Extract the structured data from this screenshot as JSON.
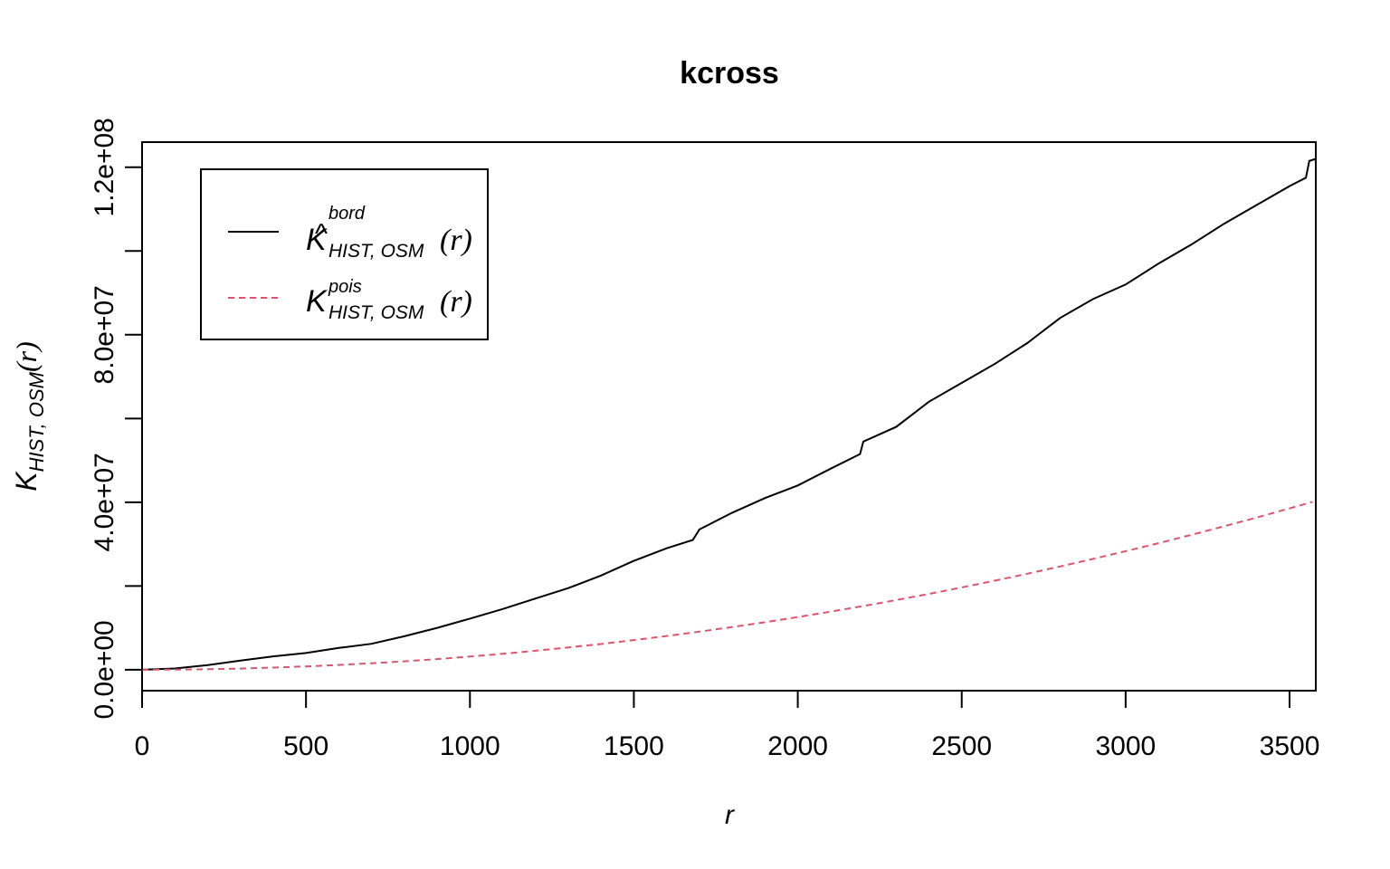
{
  "chart_data": {
    "type": "line",
    "title": "kcross",
    "xlabel": "r",
    "ylabel": {
      "base": "K",
      "subscript": "HIST, OSM",
      "arg": "(r)"
    },
    "xlim": [
      0,
      3580
    ],
    "ylim": [
      -5000000,
      126000000
    ],
    "x_ticks": [
      0,
      500,
      1000,
      1500,
      2000,
      2500,
      3000,
      3500
    ],
    "x_tick_labels": [
      "0",
      "500",
      "1000",
      "1500",
      "2000",
      "2500",
      "3000",
      "3500"
    ],
    "y_ticks": [
      0,
      20000000,
      40000000,
      60000000,
      80000000,
      100000000,
      120000000
    ],
    "y_tick_labels": [
      "0.0e+00",
      "4.0e+07",
      "8.0e+07",
      "1.2e+08"
    ],
    "y_labeled_ticks": [
      0,
      40000000,
      80000000,
      120000000
    ],
    "grid": false,
    "legend_position": "top-left",
    "series": [
      {
        "legend": {
          "base": "K",
          "hat": "^",
          "superscript": "bord",
          "subscript": "HIST, OSM",
          "arg": "(r)"
        },
        "color": "#000000",
        "dash": "solid",
        "x": [
          0,
          100,
          200,
          300,
          400,
          500,
          600,
          700,
          800,
          900,
          1000,
          1100,
          1200,
          1300,
          1400,
          1500,
          1600,
          1680,
          1700,
          1800,
          1900,
          2000,
          2100,
          2190,
          2200,
          2300,
          2400,
          2500,
          2600,
          2700,
          2800,
          2900,
          3000,
          3100,
          3200,
          3300,
          3400,
          3500,
          3550,
          3560,
          3580
        ],
        "y": [
          0,
          300000,
          1100000,
          2200000,
          3200000,
          4000000,
          5200000,
          6200000,
          8000000,
          10000000,
          12200000,
          14500000,
          17000000,
          19500000,
          22500000,
          26000000,
          29000000,
          31000000,
          33500000,
          37500000,
          41000000,
          44000000,
          48000000,
          51500000,
          54500000,
          58000000,
          64000000,
          68500000,
          73000000,
          78000000,
          84000000,
          88500000,
          92000000,
          97000000,
          101500000,
          106500000,
          111000000,
          115500000,
          117500000,
          121500000,
          122000000
        ]
      },
      {
        "legend": {
          "base": "K",
          "superscript": "pois",
          "subscript": "HIST, OSM",
          "arg": "(r)"
        },
        "color": "#df536b",
        "dash": "dashed",
        "x": [
          0,
          100,
          200,
          300,
          400,
          500,
          600,
          700,
          800,
          900,
          1000,
          1100,
          1200,
          1300,
          1400,
          1500,
          1600,
          1700,
          1800,
          1900,
          2000,
          2100,
          2200,
          2300,
          2400,
          2500,
          2600,
          2700,
          2800,
          2900,
          3000,
          3100,
          3200,
          3300,
          3400,
          3500,
          3570
        ],
        "y": [
          0,
          31000,
          126000,
          283000,
          503000,
          786000,
          1132000,
          1541000,
          2012000,
          2547000,
          3144000,
          3804000,
          4527000,
          5313000,
          6162000,
          7074000,
          8049000,
          9087000,
          10188000,
          11351000,
          12578000,
          13867000,
          15219000,
          16635000,
          18113000,
          19654000,
          21259000,
          22926000,
          24656000,
          26449000,
          28305000,
          30225000,
          32207000,
          34252000,
          36360000,
          38531000,
          40092000
        ]
      }
    ]
  }
}
